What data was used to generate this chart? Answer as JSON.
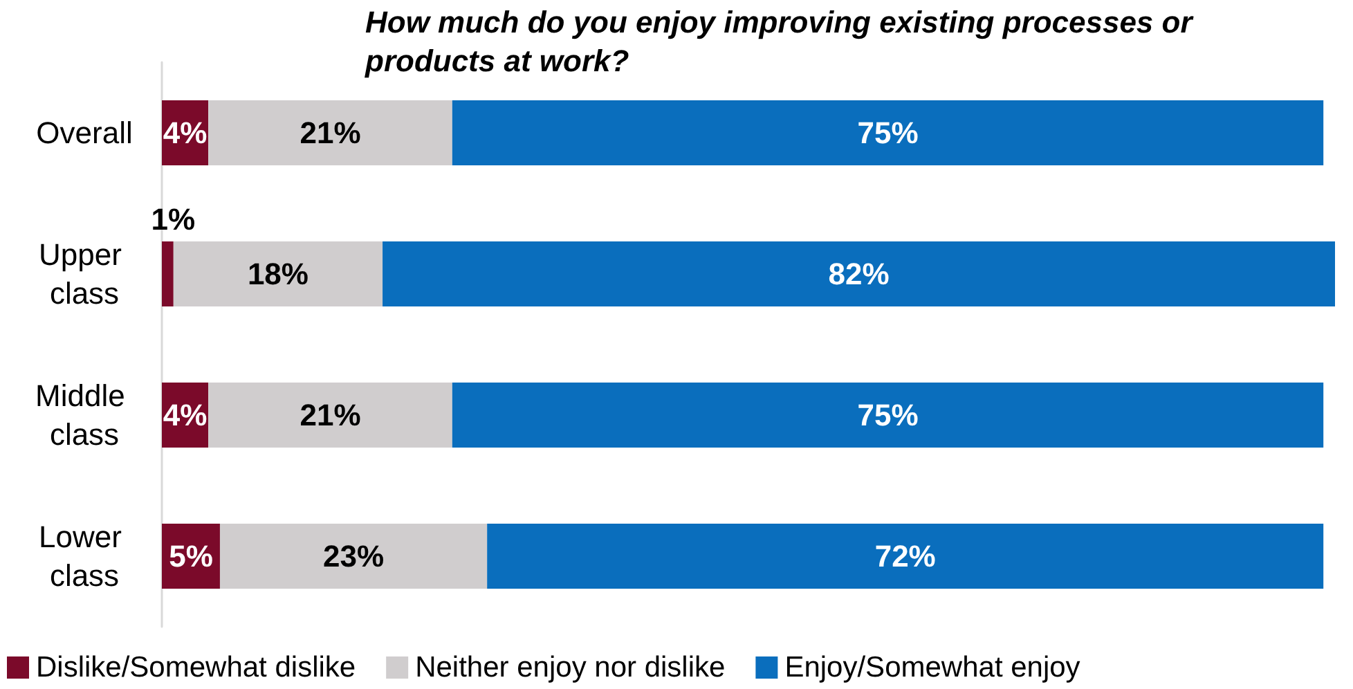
{
  "chart_data": {
    "type": "bar",
    "orientation": "horizontal",
    "stacked": true,
    "title": "How much do you enjoy improving existing processes or products at work?",
    "categories": [
      "Overall",
      "Upper class",
      "Middle class",
      "Lower class"
    ],
    "series": [
      {
        "name": "Dislike/Somewhat dislike",
        "color": "#7b0a2a",
        "values": [
          4,
          1,
          4,
          5
        ],
        "value_labels": [
          "4%",
          "1%",
          "4%",
          "5%"
        ]
      },
      {
        "name": "Neither enjoy nor dislike",
        "color": "#d0cdce",
        "values": [
          21,
          18,
          21,
          23
        ],
        "value_labels": [
          "21%",
          "18%",
          "21%",
          "23%"
        ]
      },
      {
        "name": "Enjoy/Somewhat enjoy",
        "color": "#0a6ebd",
        "values": [
          75,
          82,
          75,
          72
        ],
        "value_labels": [
          "75%",
          "82%",
          "75%",
          "72%"
        ]
      }
    ],
    "legend": "bottom"
  }
}
